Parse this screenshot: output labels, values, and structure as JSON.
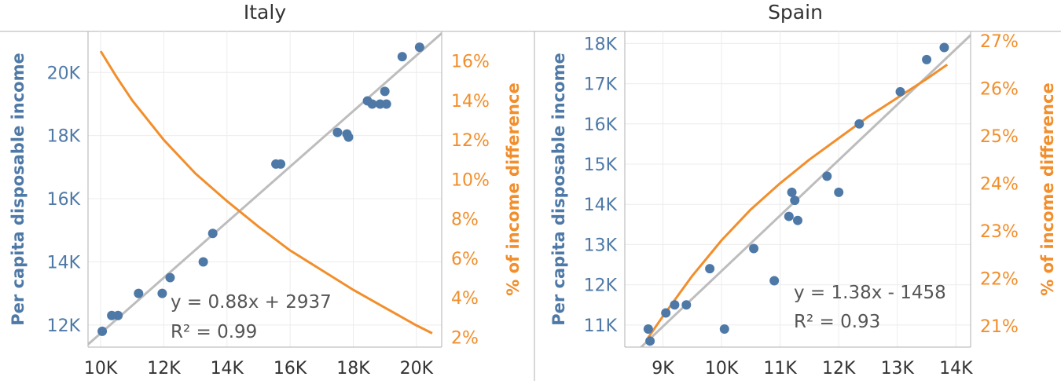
{
  "colors": {
    "blue": "#4e79a7",
    "orange": "#f28e2b",
    "trend": "#bdbdbd",
    "grid": "#ececec",
    "axis": "#b0b0b0",
    "annotation": "#555555",
    "tick": "#333333"
  },
  "chart_data": [
    {
      "type": "scatter",
      "title": "Italy",
      "xlabel": "",
      "ylabel": "Per capita disposable income",
      "y2label": "% of income difference",
      "xlim": [
        9600,
        20800
      ],
      "ylim": [
        11300,
        21300
      ],
      "y2lim": [
        1.5,
        17.5
      ],
      "x_ticks": [
        10000,
        12000,
        14000,
        16000,
        18000,
        20000
      ],
      "x_tick_labels": [
        "10K",
        "12K",
        "14K",
        "16K",
        "18K",
        "20K"
      ],
      "y_ticks": [
        12000,
        14000,
        16000,
        18000,
        20000
      ],
      "y_tick_labels": [
        "12K",
        "14K",
        "16K",
        "18K",
        "20K"
      ],
      "y2_ticks": [
        2,
        4,
        6,
        8,
        10,
        12,
        14,
        16
      ],
      "y2_tick_labels": [
        "2%",
        "4%",
        "6%",
        "8%",
        "10%",
        "12%",
        "14%",
        "16%"
      ],
      "grid": true,
      "series": [
        {
          "values": [
            [
              10050,
              11800
            ],
            [
              10350,
              12300
            ],
            [
              10550,
              12300
            ],
            [
              11200,
              13000
            ],
            [
              11950,
              13000
            ],
            [
              12200,
              13500
            ],
            [
              13250,
              14000
            ],
            [
              13550,
              14900
            ],
            [
              15550,
              17100
            ],
            [
              15700,
              17100
            ],
            [
              17500,
              18100
            ],
            [
              17800,
              18050
            ],
            [
              17850,
              17950
            ],
            [
              18450,
              19100
            ],
            [
              18600,
              19000
            ],
            [
              18850,
              19000
            ],
            [
              19000,
              19400
            ],
            [
              19050,
              19000
            ],
            [
              19550,
              20500
            ],
            [
              20100,
              20800
            ]
          ]
        },
        {
          "values": [
            [
              10000,
              16.5
            ],
            [
              10500,
              15.2
            ],
            [
              11000,
              14.0
            ],
            [
              12000,
              12.0
            ],
            [
              13000,
              10.3
            ],
            [
              14000,
              8.9
            ],
            [
              15000,
              7.6
            ],
            [
              16000,
              6.4
            ],
            [
              17000,
              5.4
            ],
            [
              18000,
              4.4
            ],
            [
              19000,
              3.5
            ],
            [
              20000,
              2.6
            ],
            [
              20500,
              2.2
            ]
          ]
        }
      ],
      "trendline": {
        "slope": 0.88,
        "intercept": 2937
      },
      "annotations": [
        "y = 0.88x + 2937",
        "R² = 0.99"
      ]
    },
    {
      "type": "scatter",
      "title": "Spain",
      "xlabel": "",
      "ylabel": "Per capita disposable income",
      "y2label": "% of income difference",
      "xlim": [
        8350,
        14250
      ],
      "ylim": [
        10450,
        18300
      ],
      "y2lim": [
        20.55,
        27.2
      ],
      "x_ticks": [
        9000,
        10000,
        11000,
        12000,
        13000,
        14000
      ],
      "x_tick_labels": [
        "9K",
        "10K",
        "11K",
        "12K",
        "13K",
        "14K"
      ],
      "y_ticks": [
        11000,
        12000,
        13000,
        14000,
        15000,
        16000,
        17000,
        18000
      ],
      "y_tick_labels": [
        "11K",
        "12K",
        "13K",
        "14K",
        "15K",
        "16K",
        "17K",
        "18K"
      ],
      "y2_ticks": [
        21,
        22,
        23,
        24,
        25,
        26,
        27
      ],
      "y2_tick_labels": [
        "21%",
        "22%",
        "23%",
        "24%",
        "25%",
        "26%",
        "27%"
      ],
      "grid": true,
      "series": [
        {
          "values": [
            [
              8750,
              10900
            ],
            [
              8780,
              10600
            ],
            [
              9050,
              11300
            ],
            [
              9200,
              11500
            ],
            [
              9400,
              11500
            ],
            [
              9800,
              12400
            ],
            [
              10050,
              10900
            ],
            [
              10550,
              12900
            ],
            [
              10900,
              12100
            ],
            [
              11150,
              13700
            ],
            [
              11200,
              14300
            ],
            [
              11250,
              14100
            ],
            [
              11300,
              13600
            ],
            [
              11800,
              14700
            ],
            [
              12000,
              14300
            ],
            [
              12350,
              16000
            ],
            [
              13050,
              16800
            ],
            [
              13500,
              17600
            ],
            [
              13800,
              17900
            ]
          ]
        },
        {
          "values": [
            [
              8750,
              20.75
            ],
            [
              9000,
              21.2
            ],
            [
              9500,
              22.05
            ],
            [
              10000,
              22.8
            ],
            [
              10500,
              23.45
            ],
            [
              11000,
              24.0
            ],
            [
              11500,
              24.5
            ],
            [
              12000,
              24.95
            ],
            [
              12500,
              25.4
            ],
            [
              13000,
              25.8
            ],
            [
              13500,
              26.2
            ],
            [
              13850,
              26.5
            ]
          ]
        }
      ],
      "trendline": {
        "slope": 1.38,
        "intercept": -1458
      },
      "annotations": [
        "y = 1.38x - 1458",
        "R² = 0.93"
      ]
    }
  ]
}
